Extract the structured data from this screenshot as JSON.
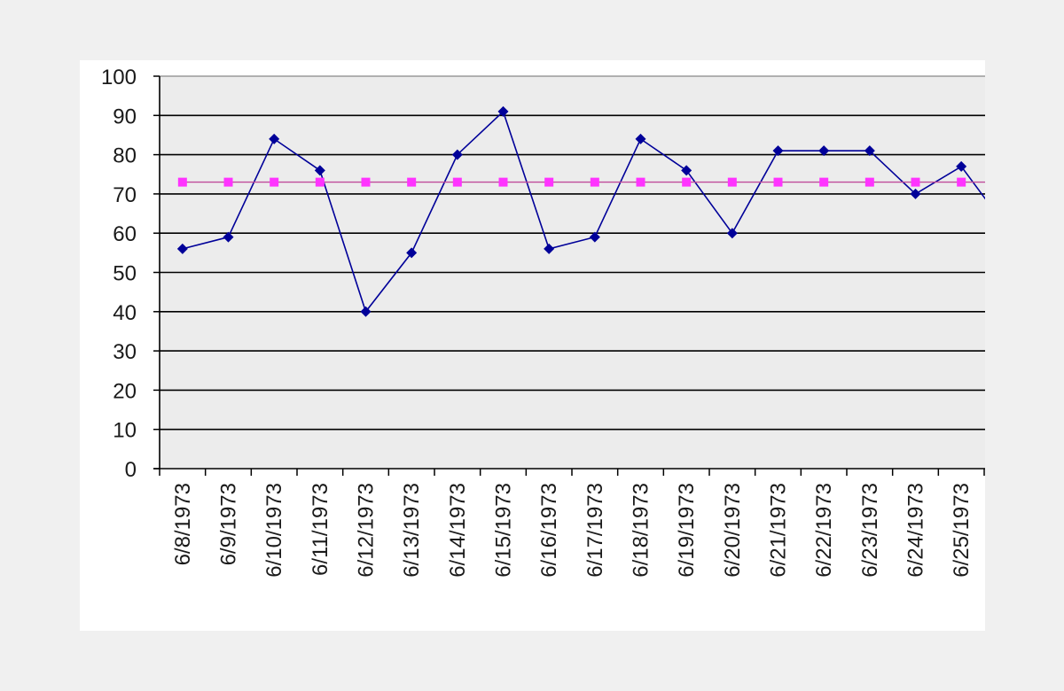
{
  "chart_data": {
    "type": "line",
    "title": "",
    "xlabel": "",
    "ylabel": "",
    "categories": [
      "6/8/1973",
      "6/9/1973",
      "6/10/1973",
      "6/11/1973",
      "6/12/1973",
      "6/13/1973",
      "6/14/1973",
      "6/15/1973",
      "6/16/1973",
      "6/17/1973",
      "6/18/1973",
      "6/19/1973",
      "6/20/1973",
      "6/21/1973",
      "6/22/1973",
      "6/23/1973",
      "6/24/1973",
      "6/25/1973"
    ],
    "y_ticks": [
      "0",
      "10",
      "20",
      "30",
      "40",
      "50",
      "60",
      "70",
      "80",
      "90",
      "100"
    ],
    "ylim": [
      0,
      100
    ],
    "grid": true,
    "legend": "none",
    "plot_background": "#ececec",
    "gridline_color": "#000000",
    "series": [
      {
        "marker": "diamond",
        "color": "#000099",
        "values": [
          56,
          59,
          84,
          76,
          40,
          55,
          80,
          91,
          56,
          59,
          84,
          76,
          60,
          81,
          81,
          81,
          70,
          77
        ]
      },
      {
        "marker": "square",
        "color": "#ff33ff",
        "line_color": "#c04b9a",
        "values": [
          73,
          73,
          73,
          73,
          73,
          73,
          73,
          73,
          73,
          73,
          73,
          73,
          73,
          73,
          73,
          73,
          73,
          73
        ]
      }
    ]
  }
}
